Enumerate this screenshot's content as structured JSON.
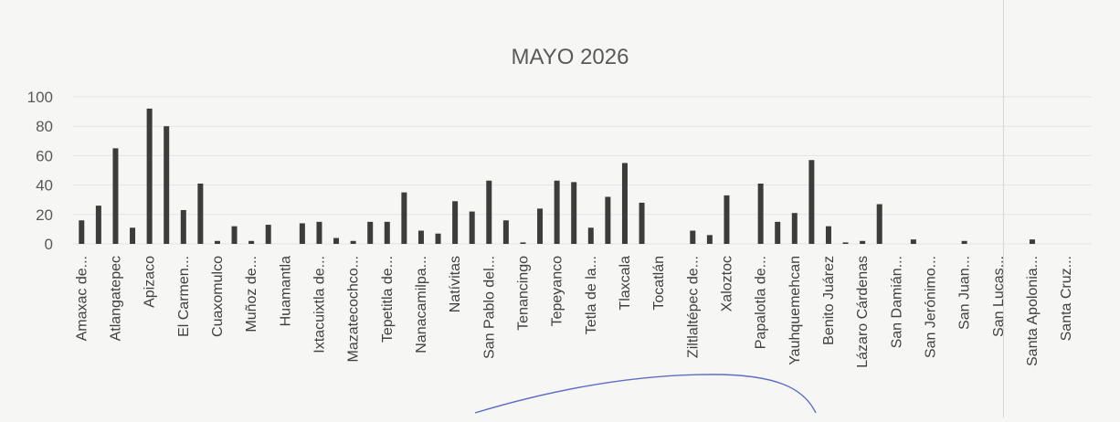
{
  "chart_data": {
    "type": "bar",
    "title": "MAYO 2026",
    "xlabel": "",
    "ylabel": "",
    "ylim": [
      0,
      100
    ],
    "yticks": [
      0,
      20,
      40,
      60,
      80,
      100
    ],
    "grid": true,
    "legend": "none",
    "bar_color": "#3c3c3c",
    "annotation_color": "#4455bb",
    "categories": [
      "Amaxac de...",
      "",
      "Atlangatepec",
      "",
      "Apizaco",
      "",
      "El Carmen...",
      "",
      "Cuaxomulco",
      "",
      "Muñoz de...",
      "",
      "Huamantla",
      "",
      "Ixtacuixtla de...",
      "",
      "Mazatecochco...",
      "",
      "Tepetitla de...",
      "",
      "Nanacamilpa...",
      "",
      "Natívitas",
      "",
      "San Pablo del...",
      "",
      "Tenancingo",
      "",
      "Tepeyanco",
      "",
      "Tetla de la...",
      "",
      "Tlaxcala",
      "",
      "Tocatlán",
      "",
      "Ziltlaltépec de...",
      "",
      "Xaloztoc",
      "",
      "Papalotla de...",
      "",
      "Yauhquemehcan",
      "",
      "Benito Juárez",
      "",
      "Lázaro Cárdenas",
      "",
      "San Damián...",
      "",
      "San Jerónimo...",
      "",
      "San Juan...",
      "",
      "San Lucas...",
      "",
      "Santa Apolonia...",
      "",
      "Santa Cruz...",
      ""
    ],
    "values": [
      16,
      26,
      65,
      11,
      92,
      80,
      23,
      41,
      2,
      12,
      2,
      13,
      0,
      14,
      15,
      4,
      2,
      15,
      15,
      35,
      9,
      7,
      29,
      22,
      43,
      16,
      1,
      24,
      43,
      42,
      11,
      32,
      55,
      28,
      0,
      0,
      9,
      6,
      33,
      0,
      41,
      15,
      21,
      57,
      12,
      1,
      2,
      27,
      0,
      3,
      0,
      0,
      2,
      0,
      0,
      0,
      3,
      0,
      0,
      0
    ]
  }
}
